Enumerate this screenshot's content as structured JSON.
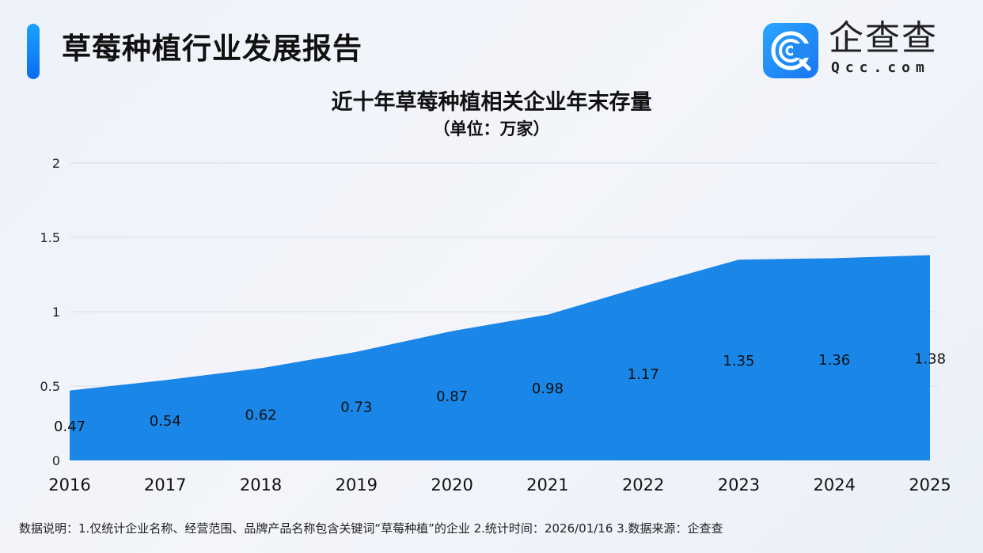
{
  "header": {
    "title": "草莓种植行业发展报告",
    "brand": "企查查",
    "brand_sub": "Qcc.com",
    "accent": "#1a86e8"
  },
  "chart_data": {
    "type": "area",
    "title": "近十年草莓种植相关企业年末存量",
    "subtitle": "（单位：万家）",
    "categories": [
      "2016",
      "2017",
      "2018",
      "2019",
      "2020",
      "2021",
      "2022",
      "2023",
      "2024",
      "2025"
    ],
    "values": [
      0.47,
      0.54,
      0.62,
      0.73,
      0.87,
      0.98,
      1.17,
      1.35,
      1.36,
      1.38
    ],
    "yticks": [
      "0",
      "0.5",
      "1",
      "1.5",
      "2"
    ],
    "ylim": [
      0,
      2
    ],
    "grid": true,
    "color": "#1a86e8"
  },
  "footnote": "数据说明：1.仅统计企业名称、经营范围、品牌产品名称包含关键词“草莓种植”的企业   2.统计时间：2026/01/16    3.数据来源：企查查"
}
